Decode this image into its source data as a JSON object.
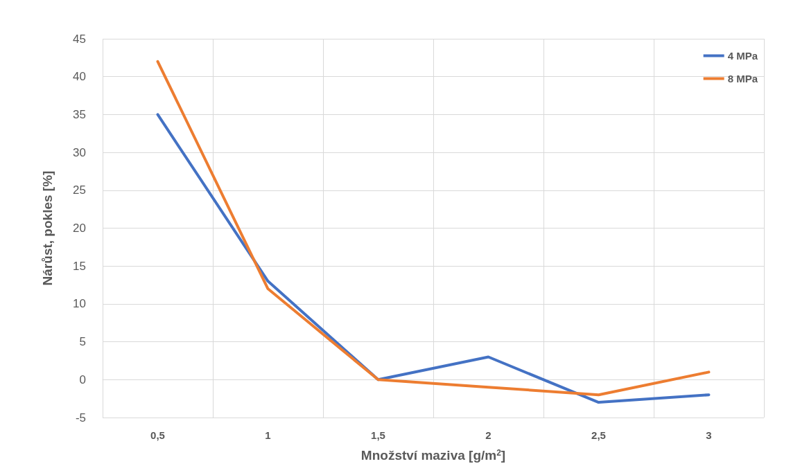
{
  "chart_data": {
    "type": "line",
    "xlabel": "Množství maziva [g/m$^{2}$]",
    "ylabel": "Nárůst, pokles [%]",
    "categories": [
      "0,5",
      "1",
      "1,5",
      "2",
      "2,5",
      "3"
    ],
    "series": [
      {
        "name": "4 MPa",
        "color": "#4472c4",
        "values": [
          35,
          13,
          0,
          3,
          -3,
          -2
        ]
      },
      {
        "name": "8 MPa",
        "color": "#ed7d31",
        "values": [
          42,
          12,
          0,
          -1,
          -2,
          1
        ]
      }
    ],
    "ylim": [
      -5,
      45
    ],
    "yticks": [
      -5,
      0,
      5,
      10,
      15,
      20,
      25,
      30,
      35,
      40,
      45
    ],
    "grid": true,
    "legend": "top right",
    "marker": "none",
    "line_style": "solid"
  }
}
